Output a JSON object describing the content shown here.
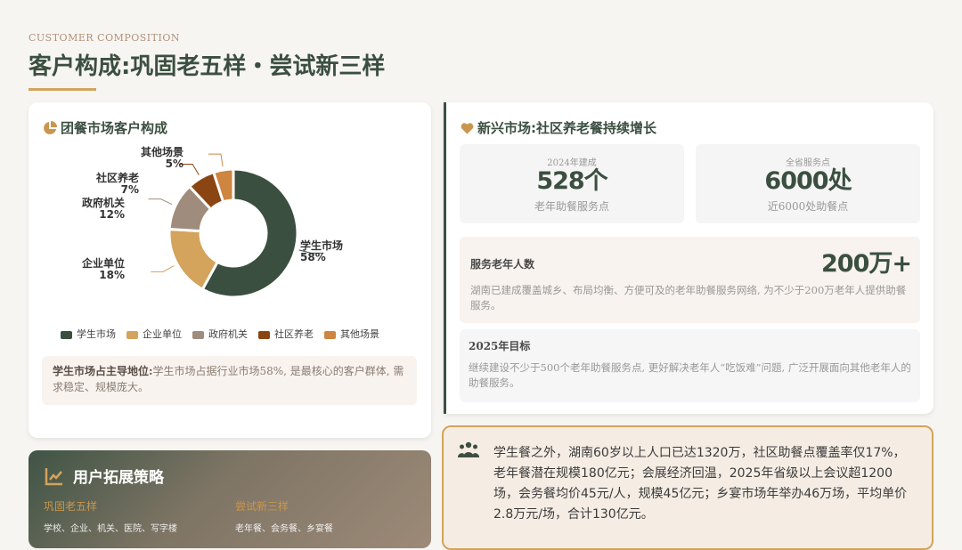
{
  "header": {
    "eyebrow": "CUSTOMER COMPOSITION",
    "title": "客户构成:巩固老五样・尝试新三样"
  },
  "left_card": {
    "title": "团餐市场客户构成",
    "icon": "pie-chart-icon",
    "note_bold": "学生市场占主导地位:",
    "note_text": "学生市场占据行业市场58%, 是最核心的客户群体, 需求稳定、规模庞大。"
  },
  "chart_data": {
    "type": "pie",
    "donut": true,
    "categories": [
      "学生市场",
      "企业单位",
      "政府机关",
      "社区养老",
      "其他场景"
    ],
    "values": [
      58,
      18,
      12,
      7,
      5
    ],
    "labels": [
      "58%",
      "18%",
      "12%",
      "7%",
      "5%"
    ],
    "colors": [
      "#3b4f40",
      "#d4a35c",
      "#a08c7c",
      "#8b4513",
      "#cd853f"
    ],
    "legend": "bottom"
  },
  "right_card": {
    "title": "新兴市场:社区养老餐持续增长",
    "icon": "heart-icon",
    "stats": [
      {
        "k": "2024年建成",
        "v": "528个",
        "s": "老年助餐服务点"
      },
      {
        "k": "全省服务点",
        "v": "6000处",
        "s": "近6000处助餐点"
      }
    ],
    "served": {
      "label": "服务老年人数",
      "value": "200万+",
      "text": "湖南已建成覆盖城乡、布局均衡、方便可及的老年助餐服务网络, 为不少于200万老年人提供助餐服务。"
    },
    "goal": {
      "label": "2025年目标",
      "text": "继续建设不少于500个老年助餐服务点, 更好解决老年人“吃饭难”问题, 广泛开展面向其他老年人的助餐服务。"
    }
  },
  "strategy": {
    "title": "用户拓展策略",
    "icon": "chart-line-icon",
    "cols": [
      {
        "h": "巩固老五样",
        "t": "学校、企业、机关、医院、写字楼"
      },
      {
        "h": "尝试新三样",
        "t": "老年餐、会务餐、乡宴餐"
      }
    ]
  },
  "insight": {
    "icon": "users-icon",
    "text": "学生餐之外，湖南60岁以上人口已达1320万，社区助餐点覆盖率仅17%，老年餐潜在规模180亿元；会展经济回温，2025年省级以上会议超1200场，会务餐均价45元/人，规模45亿元；乡宴市场年举办46万场，平均单价2.8万元/场，合计130亿元。"
  }
}
